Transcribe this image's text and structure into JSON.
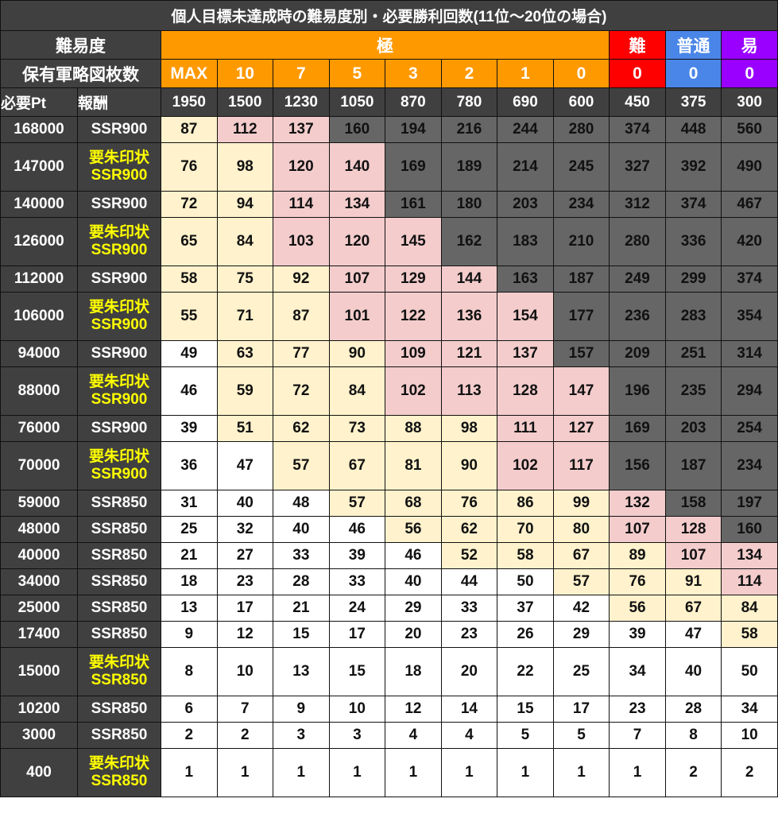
{
  "title": "個人目標未達成時の難易度別・必要勝利回数(11位〜20位の場合)",
  "header": {
    "difficulty_label": "難易度",
    "difficulties": [
      {
        "label": "極",
        "color": "#ff9900"
      },
      {
        "label": "難",
        "color": "#ff0000"
      },
      {
        "label": "普通",
        "color": "#4a86e8"
      },
      {
        "label": "易",
        "color": "#9900ff"
      }
    ],
    "maps_label": "保有軍略図枚数",
    "maps": [
      "MAX",
      "10",
      "7",
      "5",
      "3",
      "2",
      "1",
      "0",
      "0",
      "0",
      "0"
    ],
    "pt_label": "必要Pt",
    "reward_label": "報酬",
    "points_per_win": [
      "1950",
      "1500",
      "1230",
      "1050",
      "870",
      "780",
      "690",
      "600",
      "450",
      "375",
      "300"
    ]
  },
  "shade_colors": {
    "y": "#fff2cc",
    "p": "#f4cccc",
    "d": "#666666",
    "w": "#ffffff"
  },
  "rows": [
    {
      "pt": "168000",
      "seal": "",
      "reward": "SSR900",
      "values": [
        "87",
        "112",
        "137",
        "160",
        "194",
        "216",
        "244",
        "280",
        "374",
        "448",
        "560"
      ],
      "shade": "yppdddddddd"
    },
    {
      "pt": "147000",
      "seal": "要朱印状",
      "reward": "SSR900",
      "values": [
        "76",
        "98",
        "120",
        "140",
        "169",
        "189",
        "214",
        "245",
        "327",
        "392",
        "490"
      ],
      "shade": "yyppddddddd"
    },
    {
      "pt": "140000",
      "seal": "",
      "reward": "SSR900",
      "values": [
        "72",
        "94",
        "114",
        "134",
        "161",
        "180",
        "203",
        "234",
        "312",
        "374",
        "467"
      ],
      "shade": "yyppddddddd"
    },
    {
      "pt": "126000",
      "seal": "要朱印状",
      "reward": "SSR900",
      "values": [
        "65",
        "84",
        "103",
        "120",
        "145",
        "162",
        "183",
        "210",
        "280",
        "336",
        "420"
      ],
      "shade": "yypppdddddd"
    },
    {
      "pt": "112000",
      "seal": "",
      "reward": "SSR900",
      "values": [
        "58",
        "75",
        "92",
        "107",
        "129",
        "144",
        "163",
        "187",
        "249",
        "299",
        "374"
      ],
      "shade": "yyypppddddd"
    },
    {
      "pt": "106000",
      "seal": "要朱印状",
      "reward": "SSR900",
      "values": [
        "55",
        "71",
        "87",
        "101",
        "122",
        "136",
        "154",
        "177",
        "236",
        "283",
        "354"
      ],
      "shade": "yyyppppdddd"
    },
    {
      "pt": "94000",
      "seal": "",
      "reward": "SSR900",
      "values": [
        "49",
        "63",
        "77",
        "90",
        "109",
        "121",
        "137",
        "157",
        "209",
        "251",
        "314"
      ],
      "shade": "wyyypppdddd"
    },
    {
      "pt": "88000",
      "seal": "要朱印状",
      "reward": "SSR900",
      "values": [
        "46",
        "59",
        "72",
        "84",
        "102",
        "113",
        "128",
        "147",
        "196",
        "235",
        "294"
      ],
      "shade": "wyyyppppddd"
    },
    {
      "pt": "76000",
      "seal": "",
      "reward": "SSR900",
      "values": [
        "39",
        "51",
        "62",
        "73",
        "88",
        "98",
        "111",
        "127",
        "169",
        "203",
        "254"
      ],
      "shade": "wyyyyyppddd"
    },
    {
      "pt": "70000",
      "seal": "要朱印状",
      "reward": "SSR900",
      "values": [
        "36",
        "47",
        "57",
        "67",
        "81",
        "90",
        "102",
        "117",
        "156",
        "187",
        "234"
      ],
      "shade": "wwyyyyppddd"
    },
    {
      "pt": "59000",
      "seal": "",
      "reward": "SSR850",
      "values": [
        "31",
        "40",
        "48",
        "57",
        "68",
        "76",
        "86",
        "99",
        "132",
        "158",
        "197"
      ],
      "shade": "wwwyyyyypdd"
    },
    {
      "pt": "48000",
      "seal": "",
      "reward": "SSR850",
      "values": [
        "25",
        "32",
        "40",
        "46",
        "56",
        "62",
        "70",
        "80",
        "107",
        "128",
        "160"
      ],
      "shade": "wwwwyyyyppd"
    },
    {
      "pt": "40000",
      "seal": "",
      "reward": "SSR850",
      "values": [
        "21",
        "27",
        "33",
        "39",
        "46",
        "52",
        "58",
        "67",
        "89",
        "107",
        "134"
      ],
      "shade": "wwwwwyyyypp"
    },
    {
      "pt": "34000",
      "seal": "",
      "reward": "SSR850",
      "values": [
        "18",
        "23",
        "28",
        "33",
        "40",
        "44",
        "50",
        "57",
        "76",
        "91",
        "114"
      ],
      "shade": "wwwwwwwyyyp"
    },
    {
      "pt": "25000",
      "seal": "",
      "reward": "SSR850",
      "values": [
        "13",
        "17",
        "21",
        "24",
        "29",
        "33",
        "37",
        "42",
        "56",
        "67",
        "84"
      ],
      "shade": "wwwwwwwwyyy"
    },
    {
      "pt": "17400",
      "seal": "",
      "reward": "SSR850",
      "values": [
        "9",
        "12",
        "15",
        "17",
        "20",
        "23",
        "26",
        "29",
        "39",
        "47",
        "58"
      ],
      "shade": "wwwwwwwwwwy"
    },
    {
      "pt": "15000",
      "seal": "要朱印状",
      "reward": "SSR850",
      "values": [
        "8",
        "10",
        "13",
        "15",
        "18",
        "20",
        "22",
        "25",
        "34",
        "40",
        "50"
      ],
      "shade": "wwwwwwwwwww"
    },
    {
      "pt": "10200",
      "seal": "",
      "reward": "SSR850",
      "values": [
        "6",
        "7",
        "9",
        "10",
        "12",
        "14",
        "15",
        "17",
        "23",
        "28",
        "34"
      ],
      "shade": "wwwwwwwwwww"
    },
    {
      "pt": "3000",
      "seal": "",
      "reward": "SSR850",
      "values": [
        "2",
        "2",
        "3",
        "3",
        "4",
        "4",
        "5",
        "5",
        "7",
        "8",
        "10"
      ],
      "shade": "wwwwwwwwwww"
    },
    {
      "pt": "400",
      "seal": "要朱印状",
      "reward": "SSR850",
      "values": [
        "1",
        "1",
        "1",
        "1",
        "1",
        "1",
        "1",
        "1",
        "1",
        "2",
        "2"
      ],
      "shade": "wwwwwwwwwww"
    }
  ]
}
